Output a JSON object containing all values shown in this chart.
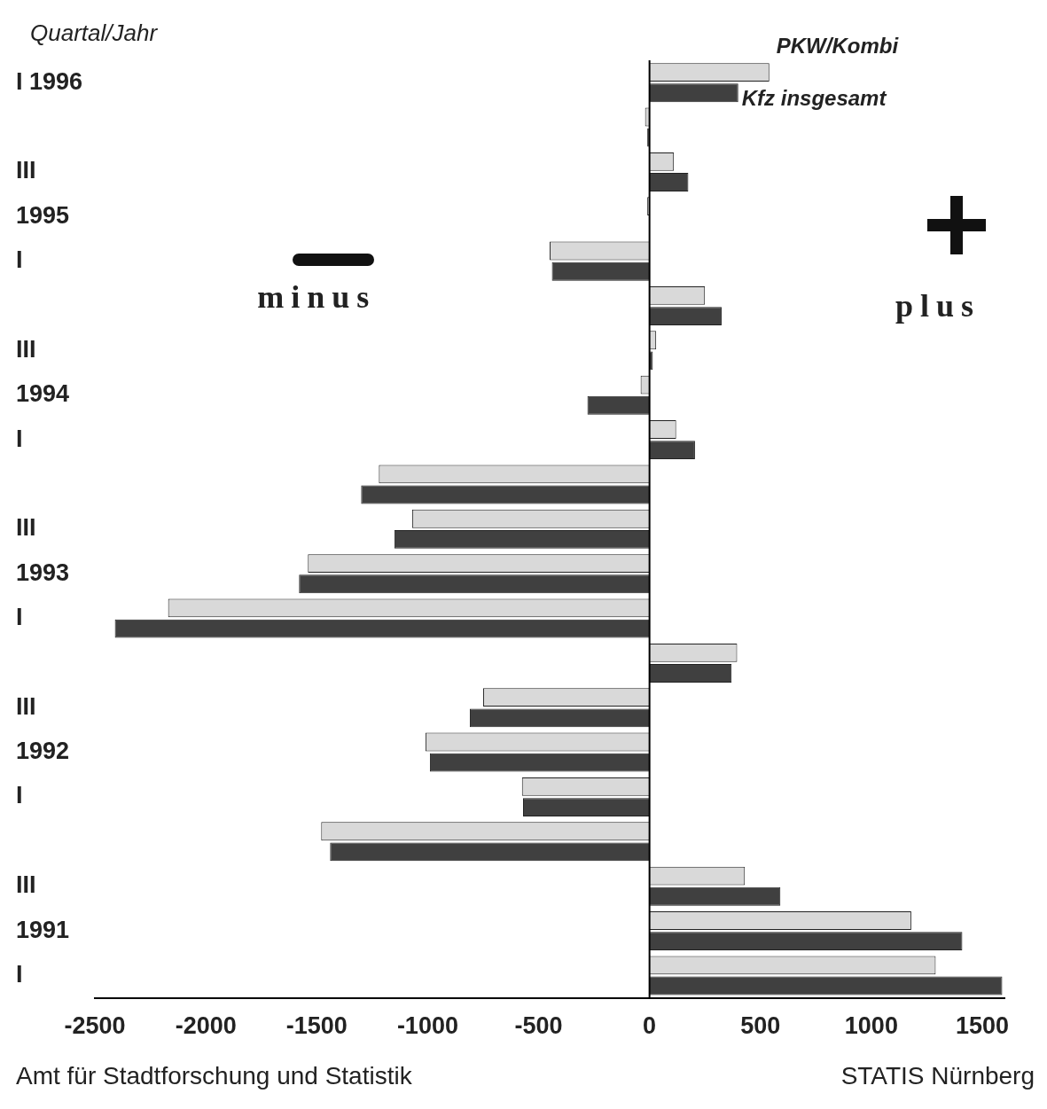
{
  "chart_data": {
    "type": "bar",
    "orientation": "horizontal",
    "ylabel": "Quartal/Jahr",
    "categories": [
      "I 1996",
      null,
      "III",
      "1995",
      "I",
      null,
      "III",
      "1994",
      "I",
      null,
      "III",
      "1993",
      "I",
      null,
      "III",
      "1992",
      "I",
      null,
      "III",
      "1991",
      "I"
    ],
    "series": [
      {
        "name": "PKW/Kombi",
        "color": "#d9d9d9",
        "values": [
          540,
          -20,
          110,
          -10,
          -450,
          250,
          30,
          -40,
          120,
          -1220,
          -1070,
          -1540,
          -2170,
          395,
          -750,
          -1010,
          -575,
          -1480,
          430,
          1180,
          1290
        ]
      },
      {
        "name": "Kfz insgesamt",
        "color": "#404040",
        "values": [
          400,
          -10,
          175,
          null,
          -440,
          325,
          15,
          -280,
          205,
          -1300,
          -1150,
          -1580,
          -2410,
          370,
          -810,
          -990,
          -570,
          -1440,
          590,
          1410,
          1590
        ]
      }
    ],
    "xlim": [
      -2500,
      1600
    ],
    "xticks": [
      -2500,
      -2000,
      -1500,
      -1000,
      -500,
      0,
      500,
      1000,
      1500
    ],
    "grid": false,
    "legend": false,
    "ref_lines": [
      {
        "axis": "x",
        "value": 0,
        "color": "#000000"
      }
    ],
    "annotations": [
      "minus",
      "plus",
      "Amt für Stadtforschung und Statistik",
      "STATIS Nürnberg"
    ]
  }
}
